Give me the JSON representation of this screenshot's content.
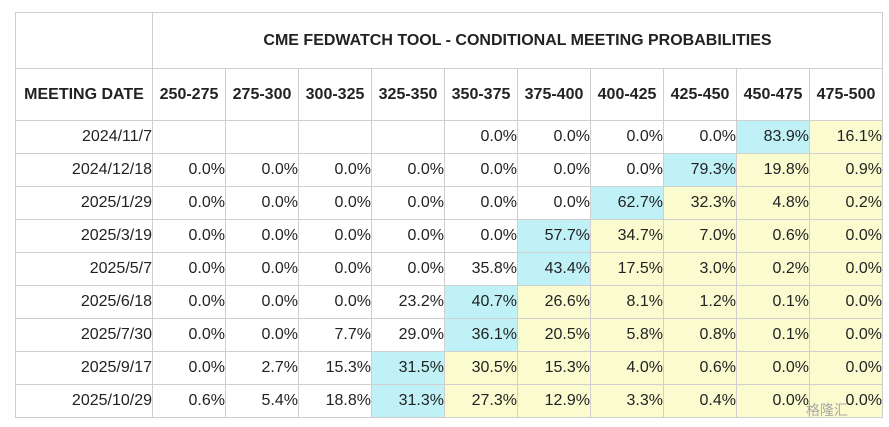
{
  "title": "CME FEDWATCH TOOL - CONDITIONAL MEETING PROBABILITIES",
  "meeting_date_label": "MEETING DATE",
  "ranges": [
    "250-275",
    "275-300",
    "300-325",
    "325-350",
    "350-375",
    "375-400",
    "400-425",
    "425-450",
    "450-475",
    "475-500"
  ],
  "rows": [
    {
      "date": "2024/11/7",
      "values": [
        "",
        "",
        "",
        "",
        "0.0%",
        "0.0%",
        "0.0%",
        "0.0%",
        "83.9%",
        "16.1%"
      ],
      "max_index": 8
    },
    {
      "date": "2024/12/18",
      "values": [
        "0.0%",
        "0.0%",
        "0.0%",
        "0.0%",
        "0.0%",
        "0.0%",
        "0.0%",
        "79.3%",
        "19.8%",
        "0.9%"
      ],
      "max_index": 7
    },
    {
      "date": "2025/1/29",
      "values": [
        "0.0%",
        "0.0%",
        "0.0%",
        "0.0%",
        "0.0%",
        "0.0%",
        "62.7%",
        "32.3%",
        "4.8%",
        "0.2%"
      ],
      "max_index": 6
    },
    {
      "date": "2025/3/19",
      "values": [
        "0.0%",
        "0.0%",
        "0.0%",
        "0.0%",
        "0.0%",
        "57.7%",
        "34.7%",
        "7.0%",
        "0.6%",
        "0.0%"
      ],
      "max_index": 5
    },
    {
      "date": "2025/5/7",
      "values": [
        "0.0%",
        "0.0%",
        "0.0%",
        "0.0%",
        "35.8%",
        "43.4%",
        "17.5%",
        "3.0%",
        "0.2%",
        "0.0%"
      ],
      "max_index": 5
    },
    {
      "date": "2025/6/18",
      "values": [
        "0.0%",
        "0.0%",
        "0.0%",
        "23.2%",
        "40.7%",
        "26.6%",
        "8.1%",
        "1.2%",
        "0.1%",
        "0.0%"
      ],
      "max_index": 4
    },
    {
      "date": "2025/7/30",
      "values": [
        "0.0%",
        "0.0%",
        "7.7%",
        "29.0%",
        "36.1%",
        "20.5%",
        "5.8%",
        "0.8%",
        "0.1%",
        "0.0%"
      ],
      "max_index": 4
    },
    {
      "date": "2025/9/17",
      "values": [
        "0.0%",
        "2.7%",
        "15.3%",
        "31.5%",
        "30.5%",
        "15.3%",
        "4.0%",
        "0.6%",
        "0.0%",
        "0.0%"
      ],
      "max_index": 3
    },
    {
      "date": "2025/10/29",
      "values": [
        "0.6%",
        "5.4%",
        "18.8%",
        "31.3%",
        "27.3%",
        "12.9%",
        "3.3%",
        "0.4%",
        "0.0%",
        "0.0%"
      ],
      "max_index": 3
    }
  ],
  "colors": {
    "highest": "#bff1f7",
    "above_highest_rate": "#fbfbd0",
    "border": "#cfcfcf",
    "text": "#222222"
  },
  "watermark": "格隆汇"
}
